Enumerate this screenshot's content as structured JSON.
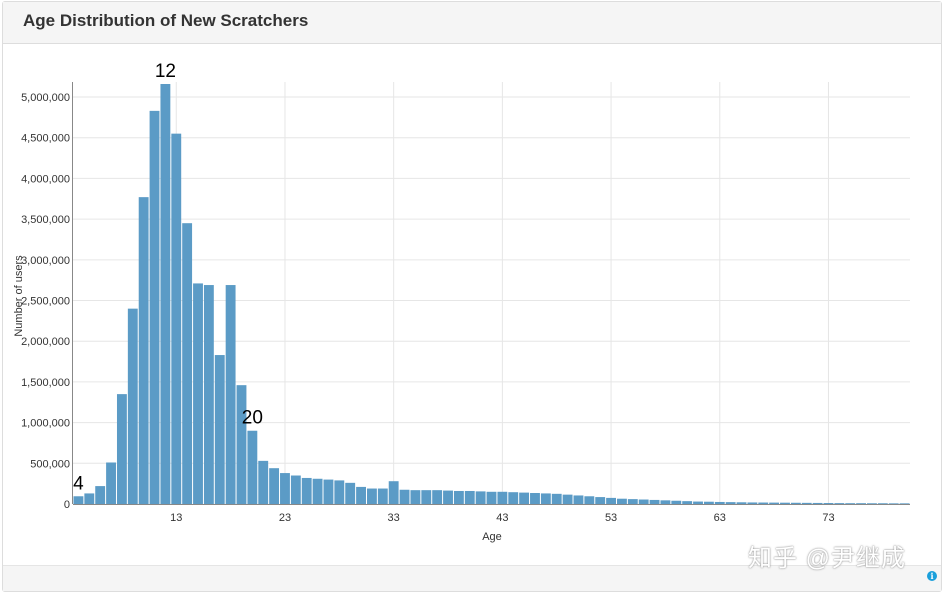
{
  "panel": {
    "title": "Age Distribution of New Scratchers"
  },
  "watermark": "知乎 @尹继成",
  "info_icon": "info-icon",
  "chart_data": {
    "type": "bar",
    "title": "Age Distribution of New Scratchers",
    "xlabel": "Age",
    "ylabel": "Number of users",
    "x": [
      4,
      5,
      6,
      7,
      8,
      9,
      10,
      11,
      12,
      13,
      14,
      15,
      16,
      17,
      18,
      19,
      20,
      21,
      22,
      23,
      24,
      25,
      26,
      27,
      28,
      29,
      30,
      31,
      32,
      33,
      34,
      35,
      36,
      37,
      38,
      39,
      40,
      41,
      42,
      43,
      44,
      45,
      46,
      47,
      48,
      49,
      50,
      51,
      52,
      53,
      54,
      55,
      56,
      57,
      58,
      59,
      60,
      61,
      62,
      63,
      64,
      65,
      66,
      67,
      68,
      69,
      70,
      71,
      72,
      73,
      74,
      75,
      76,
      77,
      78,
      79,
      80
    ],
    "values": [
      95000,
      130000,
      220000,
      510000,
      1350000,
      2400000,
      3770000,
      4830000,
      5160000,
      4550000,
      3450000,
      2710000,
      2690000,
      1830000,
      2690000,
      1460000,
      900000,
      530000,
      440000,
      380000,
      350000,
      320000,
      310000,
      300000,
      290000,
      260000,
      210000,
      190000,
      190000,
      280000,
      175000,
      170000,
      170000,
      170000,
      165000,
      160000,
      160000,
      155000,
      150000,
      150000,
      145000,
      140000,
      135000,
      130000,
      125000,
      115000,
      105000,
      95000,
      85000,
      75000,
      65000,
      60000,
      55000,
      50000,
      45000,
      40000,
      35000,
      30000,
      28000,
      25000,
      23000,
      21000,
      19000,
      18000,
      17000,
      16000,
      15000,
      14000,
      13000,
      12000,
      11000,
      10000,
      10000,
      9000,
      9000,
      8000,
      8000
    ],
    "ylim": [
      0,
      5160000
    ],
    "yticks": [
      0,
      500000,
      1000000,
      1500000,
      2000000,
      2500000,
      3000000,
      3500000,
      4000000,
      4500000,
      5000000
    ],
    "ytick_labels": [
      "0",
      "500,000",
      "1,000,000",
      "1,500,000",
      "2,000,000",
      "2,500,000",
      "3,000,000",
      "3,500,000",
      "4,000,000",
      "4,500,000",
      "5,000,000"
    ],
    "xticks": [
      13,
      23,
      33,
      43,
      53,
      63,
      73
    ],
    "xtick_labels": [
      "13",
      "23",
      "33",
      "43",
      "53",
      "63",
      "73"
    ],
    "annotations": [
      {
        "label": "4",
        "x": 4
      },
      {
        "label": "12",
        "x": 12
      },
      {
        "label": "20",
        "x": 20
      }
    ],
    "bar_color": "#5b9bc6",
    "grid": true,
    "legend": "none"
  }
}
